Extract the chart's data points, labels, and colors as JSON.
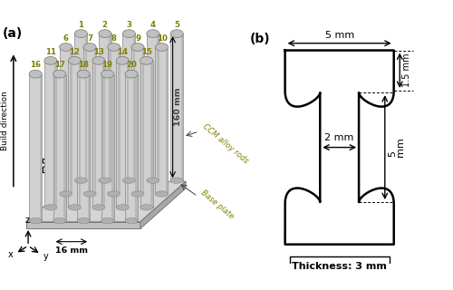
{
  "fig_width": 5.0,
  "fig_height": 3.2,
  "dpi": 100,
  "bg_color": "#ffffff",
  "label_a": "(a)",
  "label_b": "(b)",
  "number_color": "#808000",
  "rod_color_face": "#d0d0d0",
  "rod_color_right": "#b8b8b8",
  "rod_top_color": "#c0c0c0",
  "base_front_color": "#c0c0c0",
  "base_top_color": "#d5d5d5",
  "base_right_color": "#a8a8a8",
  "dim_16mm": "16 mm",
  "dim_160mm": "160 mm",
  "label_ccm": "CCM alloy rods",
  "label_base": "Base plate",
  "label_build": "Build direction",
  "dim_5mm_w": "5 mm",
  "dim_15mm": "1.5 mm",
  "dim_2mm": "2 mm",
  "dim_5mm_h": "5",
  "dim_mm": "mm",
  "dim_thickness": "Thickness: 3 mm"
}
